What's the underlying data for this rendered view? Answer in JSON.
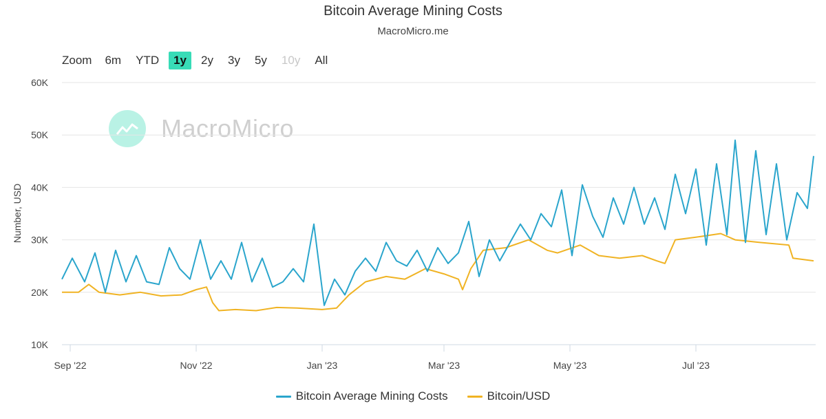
{
  "header": {
    "title": "Bitcoin Average Mining Costs",
    "subtitle": "MacroMicro.me"
  },
  "zoom": {
    "label": "Zoom",
    "buttons": [
      {
        "label": "6m",
        "state": "normal"
      },
      {
        "label": "YTD",
        "state": "normal"
      },
      {
        "label": "1y",
        "state": "active"
      },
      {
        "label": "2y",
        "state": "normal"
      },
      {
        "label": "3y",
        "state": "normal"
      },
      {
        "label": "5y",
        "state": "normal"
      },
      {
        "label": "10y",
        "state": "disabled"
      },
      {
        "label": "All",
        "state": "normal"
      }
    ]
  },
  "watermark": {
    "text": "MacroMicro"
  },
  "colors": {
    "mining": "#2aa5cc",
    "price": "#f0b323",
    "grid": "#e6e6e6",
    "active": "#38dcb7"
  },
  "chart_data": {
    "type": "line",
    "title": "Bitcoin Average Mining Costs",
    "subtitle": "MacroMicro.me",
    "ylabel": "Number, USD",
    "ylim": [
      10000,
      60000
    ],
    "yticks": [
      10000,
      20000,
      30000,
      40000,
      50000,
      60000
    ],
    "ytick_labels": [
      "10K",
      "20K",
      "30K",
      "40K",
      "50K",
      "60K"
    ],
    "xlim": [
      "2022-08-28",
      "2023-08-28"
    ],
    "xticks": [
      "2022-09-01",
      "2022-11-01",
      "2023-01-01",
      "2023-03-01",
      "2023-05-01",
      "2023-07-01"
    ],
    "xtick_labels": [
      "Sep '22",
      "Nov '22",
      "Jan '23",
      "Mar '23",
      "May '23",
      "Jul '23"
    ],
    "grid": true,
    "legend_position": "bottom-center",
    "series": [
      {
        "name": "Bitcoin Average Mining Costs",
        "color": "#2aa5cc",
        "points": [
          [
            "2022-08-28",
            22500
          ],
          [
            "2022-09-02",
            26500
          ],
          [
            "2022-09-08",
            22000
          ],
          [
            "2022-09-13",
            27500
          ],
          [
            "2022-09-18",
            20000
          ],
          [
            "2022-09-23",
            28000
          ],
          [
            "2022-09-28",
            22000
          ],
          [
            "2022-10-03",
            27000
          ],
          [
            "2022-10-08",
            22000
          ],
          [
            "2022-10-14",
            21500
          ],
          [
            "2022-10-19",
            28500
          ],
          [
            "2022-10-24",
            24500
          ],
          [
            "2022-10-29",
            22500
          ],
          [
            "2022-11-03",
            30000
          ],
          [
            "2022-11-08",
            22500
          ],
          [
            "2022-11-13",
            26000
          ],
          [
            "2022-11-18",
            22500
          ],
          [
            "2022-11-23",
            29500
          ],
          [
            "2022-11-28",
            22000
          ],
          [
            "2022-12-03",
            26500
          ],
          [
            "2022-12-08",
            21000
          ],
          [
            "2022-12-13",
            22000
          ],
          [
            "2022-12-18",
            24500
          ],
          [
            "2022-12-23",
            22000
          ],
          [
            "2022-12-28",
            33000
          ],
          [
            "2023-01-02",
            17500
          ],
          [
            "2023-01-07",
            22500
          ],
          [
            "2023-01-12",
            19500
          ],
          [
            "2023-01-17",
            24000
          ],
          [
            "2023-01-22",
            26500
          ],
          [
            "2023-01-27",
            24000
          ],
          [
            "2023-02-01",
            29500
          ],
          [
            "2023-02-06",
            26000
          ],
          [
            "2023-02-11",
            25000
          ],
          [
            "2023-02-16",
            28000
          ],
          [
            "2023-02-21",
            24000
          ],
          [
            "2023-02-26",
            28500
          ],
          [
            "2023-03-03",
            25500
          ],
          [
            "2023-03-08",
            27500
          ],
          [
            "2023-03-13",
            33500
          ],
          [
            "2023-03-18",
            23000
          ],
          [
            "2023-03-23",
            30000
          ],
          [
            "2023-03-28",
            26000
          ],
          [
            "2023-04-02",
            29500
          ],
          [
            "2023-04-07",
            33000
          ],
          [
            "2023-04-12",
            30000
          ],
          [
            "2023-04-17",
            35000
          ],
          [
            "2023-04-22",
            32500
          ],
          [
            "2023-04-27",
            39500
          ],
          [
            "2023-05-02",
            27000
          ],
          [
            "2023-05-07",
            40500
          ],
          [
            "2023-05-12",
            34500
          ],
          [
            "2023-05-17",
            30500
          ],
          [
            "2023-05-22",
            38000
          ],
          [
            "2023-05-27",
            33000
          ],
          [
            "2023-06-01",
            40000
          ],
          [
            "2023-06-06",
            33000
          ],
          [
            "2023-06-11",
            38000
          ],
          [
            "2023-06-16",
            32000
          ],
          [
            "2023-06-21",
            42500
          ],
          [
            "2023-06-26",
            35000
          ],
          [
            "2023-07-01",
            43500
          ],
          [
            "2023-07-06",
            29000
          ],
          [
            "2023-07-11",
            44500
          ],
          [
            "2023-07-16",
            31000
          ],
          [
            "2023-07-20",
            49000
          ],
          [
            "2023-07-25",
            29500
          ],
          [
            "2023-07-30",
            47000
          ],
          [
            "2023-08-04",
            31000
          ],
          [
            "2023-08-09",
            44500
          ],
          [
            "2023-08-14",
            30000
          ],
          [
            "2023-08-19",
            39000
          ],
          [
            "2023-08-24",
            36000
          ],
          [
            "2023-08-27",
            46000
          ]
        ]
      },
      {
        "name": "Bitcoin/USD",
        "color": "#f0b323",
        "points": [
          [
            "2022-08-28",
            20000
          ],
          [
            "2022-09-05",
            20000
          ],
          [
            "2022-09-10",
            21500
          ],
          [
            "2022-09-15",
            20000
          ],
          [
            "2022-09-25",
            19500
          ],
          [
            "2022-10-05",
            20000
          ],
          [
            "2022-10-15",
            19300
          ],
          [
            "2022-10-25",
            19500
          ],
          [
            "2022-11-01",
            20500
          ],
          [
            "2022-11-06",
            21000
          ],
          [
            "2022-11-09",
            18000
          ],
          [
            "2022-11-12",
            16500
          ],
          [
            "2022-11-20",
            16700
          ],
          [
            "2022-11-30",
            16500
          ],
          [
            "2022-12-10",
            17100
          ],
          [
            "2022-12-20",
            17000
          ],
          [
            "2023-01-01",
            16700
          ],
          [
            "2023-01-08",
            17000
          ],
          [
            "2023-01-14",
            19500
          ],
          [
            "2023-01-22",
            22000
          ],
          [
            "2023-02-01",
            23000
          ],
          [
            "2023-02-10",
            22500
          ],
          [
            "2023-02-20",
            24500
          ],
          [
            "2023-03-01",
            23500
          ],
          [
            "2023-03-08",
            22500
          ],
          [
            "2023-03-10",
            20500
          ],
          [
            "2023-03-14",
            24500
          ],
          [
            "2023-03-20",
            28000
          ],
          [
            "2023-03-31",
            28500
          ],
          [
            "2023-04-11",
            30000
          ],
          [
            "2023-04-20",
            28000
          ],
          [
            "2023-04-25",
            27500
          ],
          [
            "2023-05-06",
            29000
          ],
          [
            "2023-05-15",
            27000
          ],
          [
            "2023-05-25",
            26500
          ],
          [
            "2023-06-05",
            27000
          ],
          [
            "2023-06-12",
            26000
          ],
          [
            "2023-06-16",
            25500
          ],
          [
            "2023-06-21",
            30000
          ],
          [
            "2023-07-01",
            30500
          ],
          [
            "2023-07-13",
            31200
          ],
          [
            "2023-07-20",
            30000
          ],
          [
            "2023-08-01",
            29500
          ],
          [
            "2023-08-15",
            29000
          ],
          [
            "2023-08-17",
            26500
          ],
          [
            "2023-08-27",
            26000
          ]
        ]
      }
    ]
  }
}
